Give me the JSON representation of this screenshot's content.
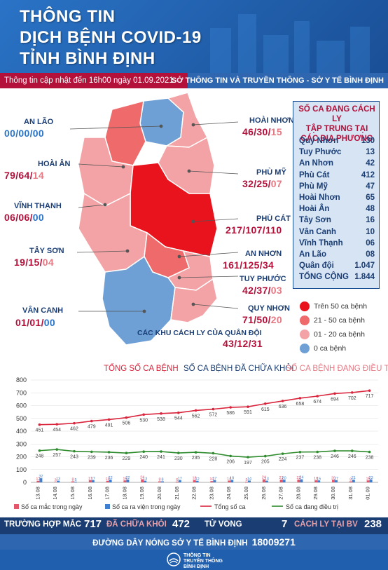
{
  "header": {
    "title_line1": "THÔNG TIN",
    "title_line2": "DỊCH BỆNH COVID-19",
    "title_line3": "TỈNH BÌNH ĐỊNH",
    "updated": "Thông tin cập nhật đến 16h00 ngày 01.09.2021",
    "department": "SỞ THÔNG TIN VÀ TRUYỀN THÔNG - SỞ Y TẾ BÌNH ĐỊNH"
  },
  "districts": [
    {
      "name": "AN LÃO",
      "v1": "00",
      "v2": "00",
      "v3": "00",
      "style": "blue"
    },
    {
      "name": "HOÀI ÂN",
      "v1": "79",
      "v2": "64",
      "v3": "14",
      "style": "red"
    },
    {
      "name": "VĨNH THẠNH",
      "v1": "06",
      "v2": "06",
      "v3": "00",
      "style": "red"
    },
    {
      "name": "TÂY SƠN",
      "v1": "19",
      "v2": "15",
      "v3": "04",
      "style": "red"
    },
    {
      "name": "VÂN CANH",
      "v1": "01",
      "v2": "01",
      "v3": "00",
      "style": "red"
    },
    {
      "name": "HOÀI NHƠN",
      "v1": "46",
      "v2": "30",
      "v3": "15",
      "style": "red"
    },
    {
      "name": "PHÙ MỸ",
      "v1": "32",
      "v2": "25",
      "v3": "07",
      "style": "red"
    },
    {
      "name": "PHÙ CÁT",
      "v1": "217",
      "v2": "107",
      "v3": "110",
      "style": "red"
    },
    {
      "name": "AN NHƠN",
      "v1": "161",
      "v2": "125",
      "v3": "34",
      "style": "red"
    },
    {
      "name": "TUY PHƯỚC",
      "v1": "42",
      "v2": "37",
      "v3": "03",
      "style": "red"
    },
    {
      "name": "QUY NHƠN",
      "v1": "71",
      "v2": "50",
      "v3": "20",
      "style": "red"
    },
    {
      "name": "CÁC KHU CÁCH LY CỦA QUÂN ĐỘI",
      "v1": "43",
      "v2": "12",
      "v3": "31",
      "style": "red"
    }
  ],
  "quarantine": {
    "title1": "SỐ CA ĐANG CÁCH LY",
    "title2": "TẬP TRUNG TẠI",
    "title3": "CÁC ĐỊA PHƯƠNG",
    "rows": [
      {
        "name": "Quy Nhơn",
        "value": "130"
      },
      {
        "name": "Tuy Phước",
        "value": "13"
      },
      {
        "name": "An Nhơn",
        "value": "42"
      },
      {
        "name": "Phù Cát",
        "value": "412"
      },
      {
        "name": "Phù Mỹ",
        "value": "47"
      },
      {
        "name": "Hoài Nhơn",
        "value": "65"
      },
      {
        "name": "Hoài Ân",
        "value": "48"
      },
      {
        "name": "Tây Sơn",
        "value": "16"
      },
      {
        "name": "Vân Canh",
        "value": "10"
      },
      {
        "name": "Vĩnh Thạnh",
        "value": "06"
      },
      {
        "name": "An Lão",
        "value": "08"
      },
      {
        "name": "Quân đội",
        "value": "1.047"
      },
      {
        "name": "TỔNG CỘNG",
        "value": "1.844"
      }
    ]
  },
  "legend": [
    {
      "label": "Trên 50 ca bệnh",
      "color": "#e8131c"
    },
    {
      "label": "21 - 50 ca bệnh",
      "color": "#ef6b6b"
    },
    {
      "label": "01 - 20 ca bệnh",
      "color": "#f3a3a6"
    },
    {
      "label": "0 ca bệnh",
      "color": "#6ea0d6"
    }
  ],
  "series_headers": {
    "total": "TỔNG SỐ CA BỆNH",
    "recovered": "SỐ CA BỆNH ĐÃ CHỮA KHỎI",
    "treating": "SỐ CA BỆNH ĐANG ĐIỀU TRỊ"
  },
  "chart_data": {
    "type": "line",
    "x": [
      "13.08",
      "14.08",
      "15.08",
      "16.08",
      "17.08",
      "18.08",
      "19.08",
      "20.08",
      "21.08",
      "22.08",
      "23.08",
      "24.08",
      "25.08",
      "26.08",
      "27.08",
      "28.08",
      "29.08",
      "30.08",
      "31.08",
      "01.09"
    ],
    "ylim": [
      0,
      800
    ],
    "yticks": [
      0,
      100,
      200,
      300,
      400,
      500,
      600,
      700,
      800
    ],
    "series": [
      {
        "name": "Tổng số ca",
        "type": "line",
        "color": "#d9243c",
        "values": [
          451,
          454,
          462,
          479,
          491,
          506,
          530,
          538,
          544,
          562,
          572,
          586,
          591,
          615,
          636,
          658,
          674,
          694,
          702,
          717
        ]
      },
      {
        "name": "Số ca đang điều trị",
        "type": "line",
        "color": "#2e8b2e",
        "values": [
          248,
          257,
          243,
          239,
          236,
          229,
          240,
          241,
          230,
          235,
          228,
          206,
          197,
          205,
          224,
          237,
          238,
          246,
          246,
          238
        ]
      },
      {
        "name": "Số ca mắc trong ngày",
        "type": "bar",
        "color": "#e4566a",
        "values": [
          12,
          3,
          8,
          17,
          12,
          15,
          24,
          8,
          6,
          18,
          10,
          14,
          5,
          24,
          21,
          22,
          16,
          20,
          8,
          15
        ]
      },
      {
        "name": "Số ca ra viện trong ngày",
        "type": "bar",
        "color": "#3f7fcf",
        "values": [
          32,
          13,
          5,
          17,
          22,
          22,
          13,
          8,
          17,
          12,
          17,
          18,
          14,
          13,
          20,
          24,
          15,
          17,
          21,
          23
        ]
      }
    ]
  },
  "stats": {
    "cases_label": "TRƯỜNG HỢP MẮC",
    "cases": "717",
    "recovered_label": "ĐÃ CHỮA KHỎI",
    "recovered": "472",
    "deaths_label": "TỬ VONG",
    "deaths": "7",
    "isolation_label": "CÁCH LY TẠI BV",
    "isolation": "238"
  },
  "hotline": {
    "label": "ĐƯỜNG DÂY NÓNG SỞ Y TẾ BÌNH ĐỊNH",
    "number": "18009271"
  },
  "footer": {
    "line1": "THÔNG TIN",
    "line2": "TRUYỀN THÔNG",
    "line3": "BÌNH ĐỊNH",
    "logo_color": "#ffffff"
  }
}
